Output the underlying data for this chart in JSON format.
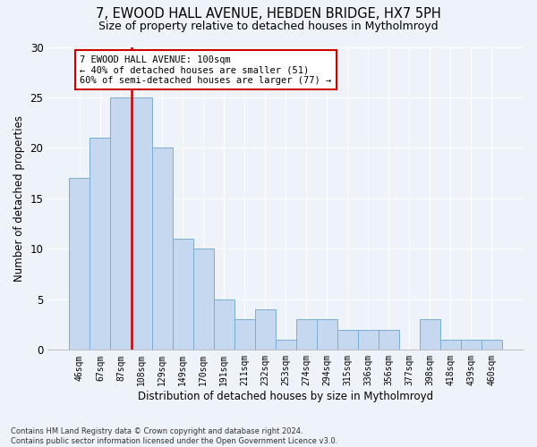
{
  "title1": "7, EWOOD HALL AVENUE, HEBDEN BRIDGE, HX7 5PH",
  "title2": "Size of property relative to detached houses in Mytholmroyd",
  "xlabel": "Distribution of detached houses by size in Mytholmroyd",
  "ylabel": "Number of detached properties",
  "categories": [
    "46sqm",
    "67sqm",
    "87sqm",
    "108sqm",
    "129sqm",
    "149sqm",
    "170sqm",
    "191sqm",
    "211sqm",
    "232sqm",
    "253sqm",
    "274sqm",
    "294sqm",
    "315sqm",
    "336sqm",
    "356sqm",
    "377sqm",
    "398sqm",
    "418sqm",
    "439sqm",
    "460sqm"
  ],
  "values": [
    17,
    21,
    25,
    25,
    20,
    11,
    10,
    5,
    3,
    4,
    1,
    3,
    3,
    2,
    2,
    2,
    0,
    3,
    1,
    1,
    1
  ],
  "bar_color": "#c5d8f0",
  "bar_edge_color": "#7aadd4",
  "annotation_title": "7 EWOOD HALL AVENUE: 100sqm",
  "annotation_line1": "← 40% of detached houses are smaller (51)",
  "annotation_line2": "60% of semi-detached houses are larger (77) →",
  "annotation_box_color": "#ffffff",
  "annotation_box_edge": "#cc0000",
  "vline_color": "#cc0000",
  "ylim": [
    0,
    30
  ],
  "yticks": [
    0,
    5,
    10,
    15,
    20,
    25,
    30
  ],
  "footnote1": "Contains HM Land Registry data © Crown copyright and database right 2024.",
  "footnote2": "Contains public sector information licensed under the Open Government Licence v3.0.",
  "background_color": "#eef2f9",
  "plot_bg_color": "#eef2f9"
}
